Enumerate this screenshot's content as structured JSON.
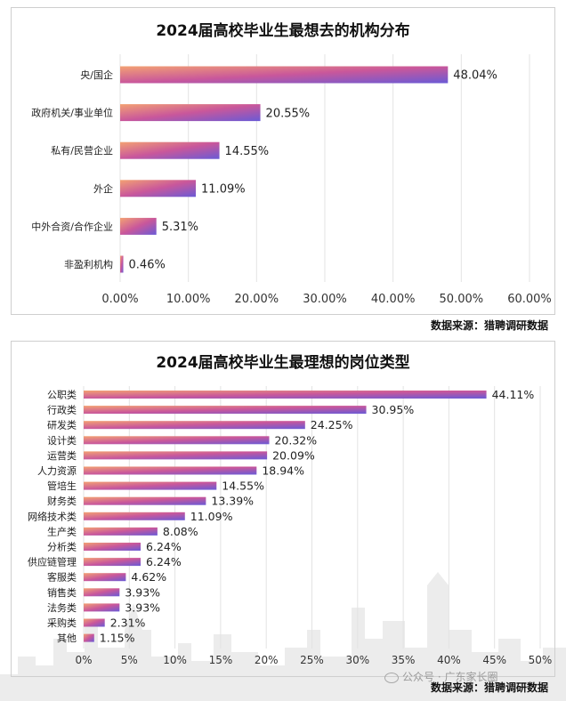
{
  "charts": {
    "institutions": {
      "title": "2024届高校毕业生最想去的机构分布",
      "source": "数据来源：猎聘调研数据"
    },
    "positions": {
      "title": "2024届高校毕业生最理想的岗位类型",
      "source": "数据来源：猎聘调研数据"
    }
  },
  "watermark": "公众号 · 广东家长圈",
  "colors": {
    "bar_start": "#f3a173",
    "bar_mid": "#c9579b",
    "bar_end": "#6a5ad6",
    "grid": "#e3e3e3",
    "skyline": "#e9e9e9"
  },
  "chart_data": [
    {
      "type": "bar",
      "orientation": "horizontal",
      "title": "2024届高校毕业生最想去的机构分布",
      "categories": [
        "央/国企",
        "政府机关/事业单位",
        "私有/民营企业",
        "外企",
        "中外合资/合作企业",
        "非盈利机构"
      ],
      "values": [
        48.04,
        20.55,
        14.55,
        11.09,
        5.31,
        0.46
      ],
      "value_labels": [
        "48.04%",
        "20.55%",
        "14.55%",
        "11.09%",
        "5.31%",
        "0.46%"
      ],
      "xticks": [
        "0.00%",
        "10.00%",
        "20.00%",
        "30.00%",
        "40.00%",
        "50.00%",
        "60.00%"
      ],
      "xlim": [
        0,
        60
      ],
      "grid": "vertical",
      "source": "数据来源：猎聘调研数据"
    },
    {
      "type": "bar",
      "orientation": "horizontal",
      "title": "2024届高校毕业生最理想的岗位类型",
      "categories": [
        "公职类",
        "行政类",
        "研发类",
        "设计类",
        "运营类",
        "人力资源",
        "管培生",
        "财务类",
        "网络技术类",
        "生产类",
        "分析类",
        "供应链管理",
        "客服类",
        "销售类",
        "法务类",
        "采购类",
        "其他"
      ],
      "values": [
        44.11,
        30.95,
        24.25,
        20.32,
        20.09,
        18.94,
        14.55,
        13.39,
        11.09,
        8.08,
        6.24,
        6.24,
        4.62,
        3.93,
        3.93,
        2.31,
        1.15
      ],
      "value_labels": [
        "44.11%",
        "30.95%",
        "24.25%",
        "20.32%",
        "20.09%",
        "18.94%",
        "14.55%",
        "13.39%",
        "11.09%",
        "8.08%",
        "6.24%",
        "6.24%",
        "4.62%",
        "3.93%",
        "3.93%",
        "2.31%",
        "1.15%"
      ],
      "xticks": [
        "0%",
        "5%",
        "10%",
        "15%",
        "20%",
        "25%",
        "30%",
        "35%",
        "40%",
        "45%",
        "50%"
      ],
      "xlim": [
        0,
        50
      ],
      "grid": "vertical",
      "source": "数据来源：猎聘调研数据"
    }
  ]
}
